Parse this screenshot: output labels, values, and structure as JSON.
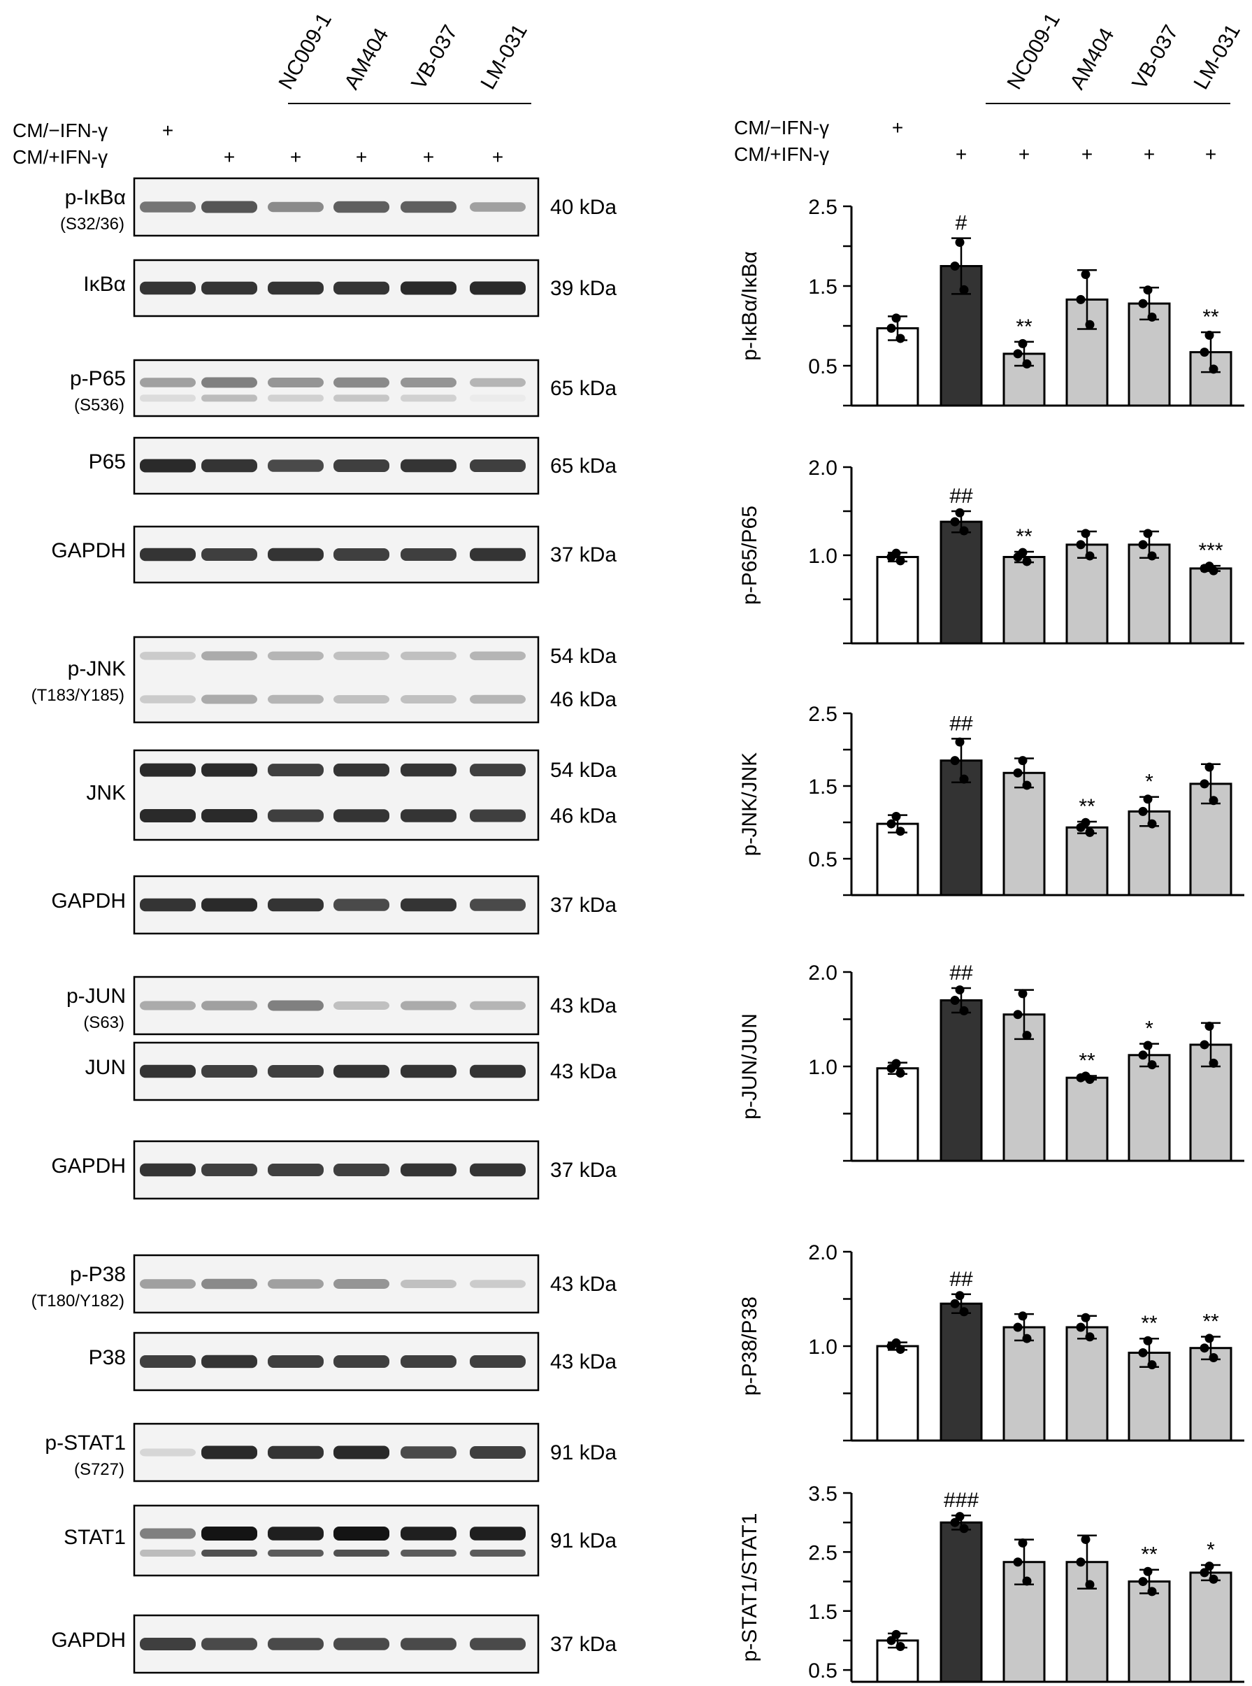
{
  "treatments": {
    "groups": [
      "NC009-1",
      "AM404",
      "VB-037",
      "LM-031"
    ],
    "row_minus_label": "CM/−IFN-γ",
    "row_plus_label": "CM/+IFN-γ",
    "plus": "+"
  },
  "blot": {
    "panels": [
      {
        "label": "p-IκBα",
        "sublabel": "(S32/36)",
        "kda": [
          "40 kDa"
        ],
        "bands": 1,
        "intensity": [
          0.55,
          0.7,
          0.45,
          0.65,
          0.65,
          0.35
        ]
      },
      {
        "label": "IκBα",
        "sublabel": "",
        "kda": [
          "39 kDa"
        ],
        "bands": 1,
        "intensity": [
          0.85,
          0.85,
          0.85,
          0.85,
          0.9,
          0.9
        ]
      },
      {
        "label": "p-P65",
        "sublabel": "(S536)",
        "kda": [
          "65 kDa"
        ],
        "bands": 2,
        "intensity": [
          0.35,
          0.5,
          0.4,
          0.45,
          0.4,
          0.25
        ]
      },
      {
        "label": "P65",
        "sublabel": "",
        "kda": [
          "65 kDa"
        ],
        "bands": 1,
        "intensity": [
          0.9,
          0.85,
          0.75,
          0.8,
          0.85,
          0.8
        ]
      },
      {
        "label": "GAPDH",
        "sublabel": "",
        "kda": [
          "37 kDa"
        ],
        "bands": 1,
        "intensity": [
          0.85,
          0.8,
          0.85,
          0.8,
          0.8,
          0.85
        ]
      },
      {
        "label": "p-JNK",
        "sublabel": "(T183/Y185)",
        "kda": [
          "54 kDa",
          "46 kDa"
        ],
        "bands": 2,
        "intensity": [
          0.15,
          0.3,
          0.25,
          0.2,
          0.2,
          0.25
        ]
      },
      {
        "label": "JNK",
        "sublabel": "",
        "kda": [
          "54 kDa",
          "46 kDa"
        ],
        "bands": 2,
        "intensity": [
          0.9,
          0.9,
          0.8,
          0.85,
          0.85,
          0.8
        ]
      },
      {
        "label": "GAPDH",
        "sublabel": "",
        "kda": [
          "37 kDa"
        ],
        "bands": 1,
        "intensity": [
          0.85,
          0.9,
          0.85,
          0.75,
          0.85,
          0.75
        ]
      },
      {
        "label": "p-JUN",
        "sublabel": "(S63)",
        "kda": [
          "43 kDa"
        ],
        "bands": 1,
        "intensity": [
          0.3,
          0.35,
          0.5,
          0.2,
          0.3,
          0.25
        ]
      },
      {
        "label": "JUN",
        "sublabel": "",
        "kda": [
          "43 kDa"
        ],
        "bands": 1,
        "intensity": [
          0.85,
          0.8,
          0.8,
          0.85,
          0.85,
          0.85
        ]
      },
      {
        "label": "GAPDH",
        "sublabel": "",
        "kda": [
          "37 kDa"
        ],
        "bands": 1,
        "intensity": [
          0.85,
          0.8,
          0.8,
          0.8,
          0.85,
          0.85
        ]
      },
      {
        "label": "p-P38",
        "sublabel": "(T180/Y182)",
        "kda": [
          "43 kDa"
        ],
        "bands": 1,
        "intensity": [
          0.35,
          0.45,
          0.35,
          0.4,
          0.2,
          0.15
        ]
      },
      {
        "label": "P38",
        "sublabel": "",
        "kda": [
          "43 kDa"
        ],
        "bands": 1,
        "intensity": [
          0.8,
          0.85,
          0.8,
          0.8,
          0.8,
          0.8
        ]
      },
      {
        "label": "p-STAT1",
        "sublabel": "(S727)",
        "kda": [
          "91 kDa"
        ],
        "bands": 1,
        "intensity": [
          0.1,
          0.9,
          0.85,
          0.9,
          0.75,
          0.8
        ]
      },
      {
        "label": "STAT1",
        "sublabel": "",
        "kda": [
          "91 kDa"
        ],
        "bands": 2,
        "intensity": [
          0.5,
          1.0,
          0.95,
          1.0,
          0.95,
          0.95
        ]
      },
      {
        "label": "GAPDH",
        "sublabel": "",
        "kda": [
          "37 kDa"
        ],
        "bands": 1,
        "intensity": [
          0.8,
          0.75,
          0.75,
          0.75,
          0.75,
          0.75
        ]
      }
    ]
  },
  "colors": {
    "control_bar": "#ffffff",
    "ifn_bar": "#333333",
    "treatment_bar": "#c8c8c8",
    "ink": "#000000"
  },
  "chart_data": [
    {
      "type": "bar",
      "ylabel": "p-IκBα/IκBα",
      "ylim": [
        0,
        2.5
      ],
      "yticks": [
        "0.5",
        "1.5",
        "2.5"
      ],
      "values": [
        0.97,
        1.75,
        0.65,
        1.33,
        1.28,
        0.67
      ],
      "errors": [
        0.15,
        0.35,
        0.15,
        0.37,
        0.2,
        0.25
      ],
      "annotations": [
        "",
        "#",
        "**",
        "",
        "",
        "**"
      ]
    },
    {
      "type": "bar",
      "ylabel": "p-P65/P65",
      "ylim": [
        0,
        2.0
      ],
      "yticks": [
        "1.0",
        "2.0"
      ],
      "values": [
        0.98,
        1.38,
        0.98,
        1.12,
        1.12,
        0.85
      ],
      "errors": [
        0.05,
        0.12,
        0.06,
        0.15,
        0.15,
        0.03
      ],
      "annotations": [
        "",
        "##",
        "**",
        "",
        "",
        "***"
      ]
    },
    {
      "type": "bar",
      "ylabel": "p-JNK/JNK",
      "ylim": [
        0,
        2.5
      ],
      "yticks": [
        "0.5",
        "1.5",
        "2.5"
      ],
      "values": [
        0.98,
        1.85,
        1.68,
        0.93,
        1.15,
        1.53
      ],
      "errors": [
        0.12,
        0.3,
        0.2,
        0.08,
        0.2,
        0.27
      ],
      "annotations": [
        "",
        "##",
        "",
        "**",
        "*",
        ""
      ]
    },
    {
      "type": "bar",
      "ylabel": "p-JUN/JUN",
      "ylim": [
        0,
        2.0
      ],
      "yticks": [
        "1.0",
        "2.0"
      ],
      "values": [
        0.98,
        1.7,
        1.55,
        0.88,
        1.12,
        1.23
      ],
      "errors": [
        0.06,
        0.13,
        0.26,
        0.02,
        0.12,
        0.23
      ],
      "annotations": [
        "",
        "##",
        "",
        "**",
        "*",
        ""
      ]
    },
    {
      "type": "bar",
      "ylabel": "p-P38/P38",
      "ylim": [
        0,
        2.0
      ],
      "yticks": [
        "1.0",
        "2.0"
      ],
      "values": [
        1.0,
        1.45,
        1.2,
        1.2,
        0.93,
        0.98
      ],
      "errors": [
        0.04,
        0.1,
        0.14,
        0.12,
        0.15,
        0.12
      ],
      "annotations": [
        "",
        "##",
        "",
        "",
        "**",
        "**"
      ]
    },
    {
      "type": "bar",
      "ylabel": "p-STAT1/STAT1",
      "ylim": [
        0.3,
        3.5
      ],
      "yticks": [
        "0.5",
        "1.5",
        "2.5",
        "3.5"
      ],
      "values": [
        1.0,
        3.0,
        2.33,
        2.33,
        2.0,
        2.15
      ],
      "errors": [
        0.12,
        0.12,
        0.38,
        0.45,
        0.2,
        0.13
      ],
      "annotations": [
        "",
        "###",
        "",
        "",
        "**",
        "*"
      ]
    }
  ]
}
